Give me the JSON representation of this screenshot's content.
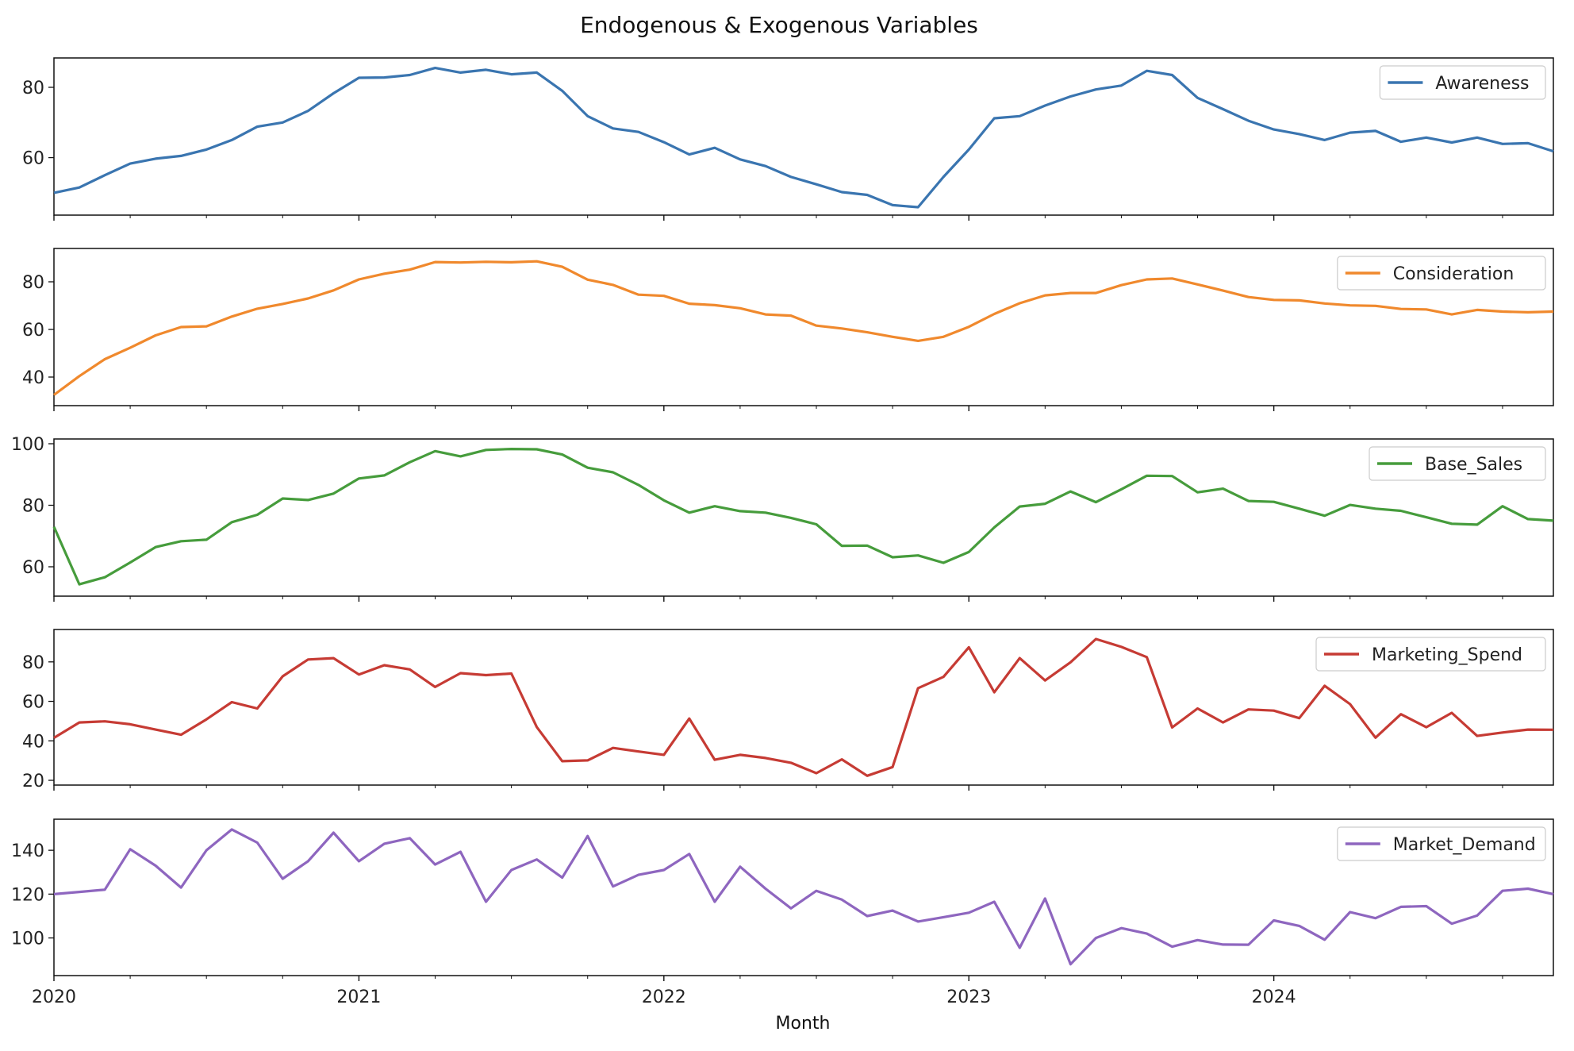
{
  "chart_data": {
    "type": "line",
    "title": "Endogenous & Exogenous Variables",
    "xlabel": "Month",
    "x_start": "2020-01",
    "x_end": "2024-12",
    "x_tick_labels": [
      "2020",
      "2021",
      "2022",
      "2023",
      "2024"
    ],
    "grid": false,
    "legend_position": "top-right",
    "panels": [
      {
        "name": "Awareness",
        "color": "#3a75b0",
        "ylim": [
          45,
          87
        ],
        "yticks": [
          60,
          80
        ],
        "values": [
          50,
          51.5,
          55,
          58.3,
          59.7,
          60.5,
          62.3,
          65,
          68.8,
          70,
          73.3,
          78.3,
          82.7,
          82.8,
          83.5,
          85.5,
          84.2,
          85,
          83.7,
          84.2,
          79,
          71.8,
          68.3,
          67.3,
          64.4,
          60.9,
          62.8,
          59.5,
          57.6,
          54.5,
          52.4,
          50.2,
          49.4,
          46.5,
          45.9,
          54.5,
          62.3,
          71.2,
          71.8,
          74.8,
          77.4,
          79.4,
          80.5,
          84.7,
          83.5,
          77,
          73.8,
          70.5,
          68,
          66.7,
          65,
          67.1,
          67.6,
          64.5,
          65.7,
          64.3,
          65.7,
          63.9,
          64.1,
          61.8
        ]
      },
      {
        "name": "Consideration",
        "color": "#f0892d",
        "ylim": [
          30,
          92
        ],
        "yticks": [
          40,
          60,
          80
        ],
        "values": [
          32.5,
          40.4,
          47.5,
          52.3,
          57.5,
          61,
          61.3,
          65.4,
          68.7,
          70.7,
          73,
          76.4,
          81,
          83.4,
          85.1,
          88.3,
          88.1,
          88.4,
          88.2,
          88.6,
          86.3,
          80.9,
          78.7,
          74.6,
          74.1,
          70.8,
          70.2,
          68.9,
          66.3,
          65.8,
          61.6,
          60.4,
          58.8,
          56.9,
          55.2,
          56.9,
          61.1,
          66.5,
          71,
          74.3,
          75.3,
          75.3,
          78.6,
          81,
          81.4,
          78.9,
          76.3,
          73.6,
          72.4,
          72.2,
          70.9,
          70.1,
          69.9,
          68.6,
          68.4,
          66.3,
          68.2,
          67.5,
          67.2,
          67.5
        ]
      },
      {
        "name": "Base_Sales",
        "color": "#469c3c",
        "ylim": [
          52,
          100
        ],
        "yticks": [
          60,
          80,
          100
        ],
        "values": [
          73,
          54.3,
          56.6,
          61.4,
          66.4,
          68.3,
          68.8,
          74.5,
          76.9,
          82.2,
          81.7,
          83.8,
          88.7,
          89.7,
          94,
          97.6,
          95.9,
          98,
          98.3,
          98.2,
          96.5,
          92.2,
          90.7,
          86.6,
          81.6,
          77.6,
          79.7,
          78.1,
          77.6,
          75.9,
          73.8,
          66.8,
          66.9,
          63.1,
          63.7,
          61.3,
          64.8,
          72.8,
          79.6,
          80.5,
          84.5,
          81,
          85.2,
          89.6,
          89.5,
          84.2,
          85.4,
          81.4,
          81.1,
          78.9,
          76.6,
          80.1,
          78.9,
          78.2,
          76.1,
          74,
          73.7,
          79.7,
          75.5,
          75
        ]
      },
      {
        "name": "Marketing_Spend",
        "color": "#c63b34",
        "ylim": [
          20,
          94
        ],
        "yticks": [
          20,
          40,
          60,
          80
        ],
        "values": [
          41.5,
          49.3,
          49.9,
          48.4,
          45.7,
          43.1,
          50.9,
          59.6,
          56.4,
          72.7,
          81.2,
          81.9,
          73.6,
          78.3,
          76.2,
          67.3,
          74.3,
          73.3,
          74.1,
          47,
          29.7,
          30.1,
          36.4,
          34.6,
          32.9,
          51.3,
          30.4,
          32.9,
          31.3,
          28.9,
          23.6,
          30.6,
          22.3,
          26.7,
          66.7,
          72.4,
          87.4,
          64.6,
          81.9,
          70.6,
          79.8,
          91.6,
          87.6,
          82.4,
          46.8,
          56.4,
          49.3,
          55.9,
          55.3,
          51.5,
          67.9,
          58.6,
          41.6,
          53.5,
          46.9,
          54.2,
          42.5,
          44.2,
          45.7,
          45.6
        ]
      },
      {
        "name": "Market_Demand",
        "color": "#8e66bf",
        "ylim": [
          85,
          152
        ],
        "yticks": [
          100,
          120,
          140
        ],
        "values": [
          120,
          121,
          122,
          140.5,
          133,
          123,
          140,
          149.5,
          143.5,
          127,
          135,
          148,
          135,
          143,
          145.5,
          133.5,
          139.3,
          116.5,
          131,
          135.8,
          127.5,
          146.5,
          123.5,
          128.8,
          131,
          138.3,
          116.5,
          132.5,
          122.5,
          113.5,
          121.5,
          117.5,
          110,
          112.5,
          107.5,
          109.5,
          111.5,
          116.5,
          95.5,
          118,
          88,
          100,
          104.5,
          102,
          96,
          99,
          97,
          96.9,
          108,
          105.5,
          99.2,
          111.8,
          109,
          114.2,
          114.5,
          106.5,
          110.2,
          121.5,
          122.5,
          120
        ]
      }
    ]
  }
}
